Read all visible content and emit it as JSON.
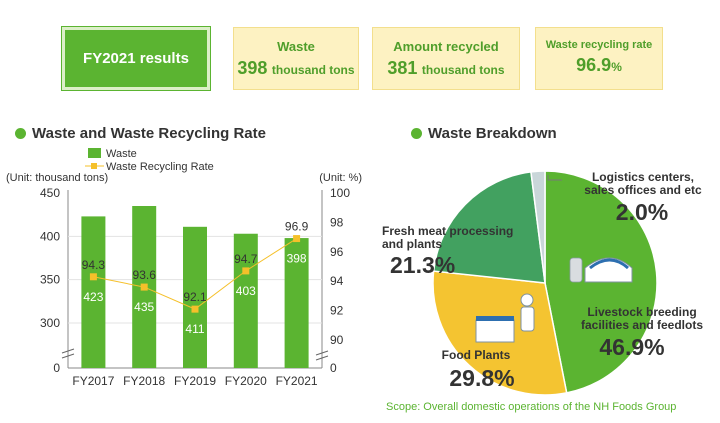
{
  "summary": {
    "fy_label": "FY2021 results",
    "waste": {
      "label": "Waste",
      "value": "398",
      "unit": "thousand tons"
    },
    "recycled": {
      "label": "Amount recycled",
      "value": "381",
      "unit": "thousand tons"
    },
    "rate": {
      "label": "Waste recycling rate",
      "value": "96.9",
      "unit": "%"
    }
  },
  "left_title": "Waste and Waste Recycling Rate",
  "right_title": "Waste Breakdown",
  "scope_note": "Scope: Overall domestic operations of the NH Foods Group",
  "colors": {
    "green": "#5bb431",
    "yellow": "#f5c02a",
    "dark_green": "#42a160",
    "light_gray": "#c9d6d9",
    "pie_yellow": "#f4c431"
  },
  "chart_data": [
    {
      "type": "bar",
      "categories": [
        "FY2017",
        "FY2018",
        "FY2019",
        "FY2020",
        "FY2021"
      ],
      "series": [
        {
          "name": "Waste",
          "kind": "bar",
          "values": [
            423,
            435,
            411,
            403,
            398
          ],
          "axis": "left"
        },
        {
          "name": "Waste Recycling Rate",
          "kind": "line",
          "values": [
            94.3,
            93.6,
            92.1,
            94.7,
            96.9
          ],
          "axis": "right"
        }
      ],
      "left_axis": {
        "unit_label": "(Unit: thousand tons)",
        "ticks": [
          0,
          300,
          350,
          400,
          450
        ],
        "ylim": [
          0,
          450
        ],
        "broken": true
      },
      "right_axis": {
        "unit_label": "(Unit: %)",
        "ticks": [
          0,
          90,
          92,
          94,
          96,
          98,
          100
        ],
        "ylim": [
          0,
          100
        ],
        "broken": true
      },
      "legend_position": "top"
    },
    {
      "type": "pie",
      "slices": [
        {
          "label_lines": [
            "Livestock breeding",
            "facilities and feedlots"
          ],
          "value": 46.9,
          "pct": "46.9%"
        },
        {
          "label_lines": [
            "Food Plants"
          ],
          "value": 29.8,
          "pct": "29.8%"
        },
        {
          "label_lines": [
            "Fresh meat processing",
            "and plants"
          ],
          "value": 21.3,
          "pct": "21.3%"
        },
        {
          "label_lines": [
            "Logistics centers,",
            "sales offices and etc"
          ],
          "value": 2.0,
          "pct": "2.0%"
        }
      ]
    }
  ]
}
